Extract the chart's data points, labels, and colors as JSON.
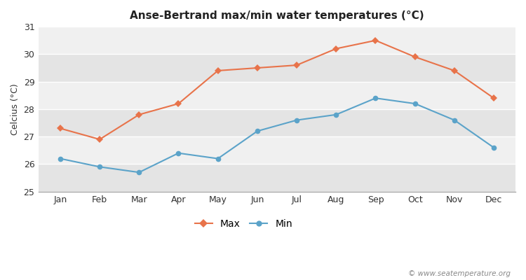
{
  "months": [
    "Jan",
    "Feb",
    "Mar",
    "Apr",
    "May",
    "Jun",
    "Jul",
    "Aug",
    "Sep",
    "Oct",
    "Nov",
    "Dec"
  ],
  "max_temps": [
    27.3,
    26.9,
    27.8,
    28.2,
    29.4,
    29.5,
    29.6,
    30.2,
    30.5,
    29.9,
    29.4,
    28.4
  ],
  "min_temps": [
    26.2,
    25.9,
    25.7,
    26.4,
    26.2,
    27.2,
    27.6,
    27.8,
    28.4,
    28.2,
    27.6,
    26.6
  ],
  "max_color": "#e8734a",
  "min_color": "#5ba3c9",
  "title": "Anse-Bertrand max/min water temperatures (°C)",
  "ylabel": "Celcius (°C)",
  "ylim": [
    25,
    31
  ],
  "yticks": [
    25,
    26,
    27,
    28,
    29,
    30,
    31
  ],
  "fig_bg_color": "#ffffff",
  "plot_bg_color_light": "#f0f0f0",
  "plot_bg_color_dark": "#e4e4e4",
  "grid_color": "#ffffff",
  "watermark": "© www.seatemperature.org",
  "legend_max": "Max",
  "legend_min": "Min",
  "bottom_area_color": "#d8d8d8"
}
